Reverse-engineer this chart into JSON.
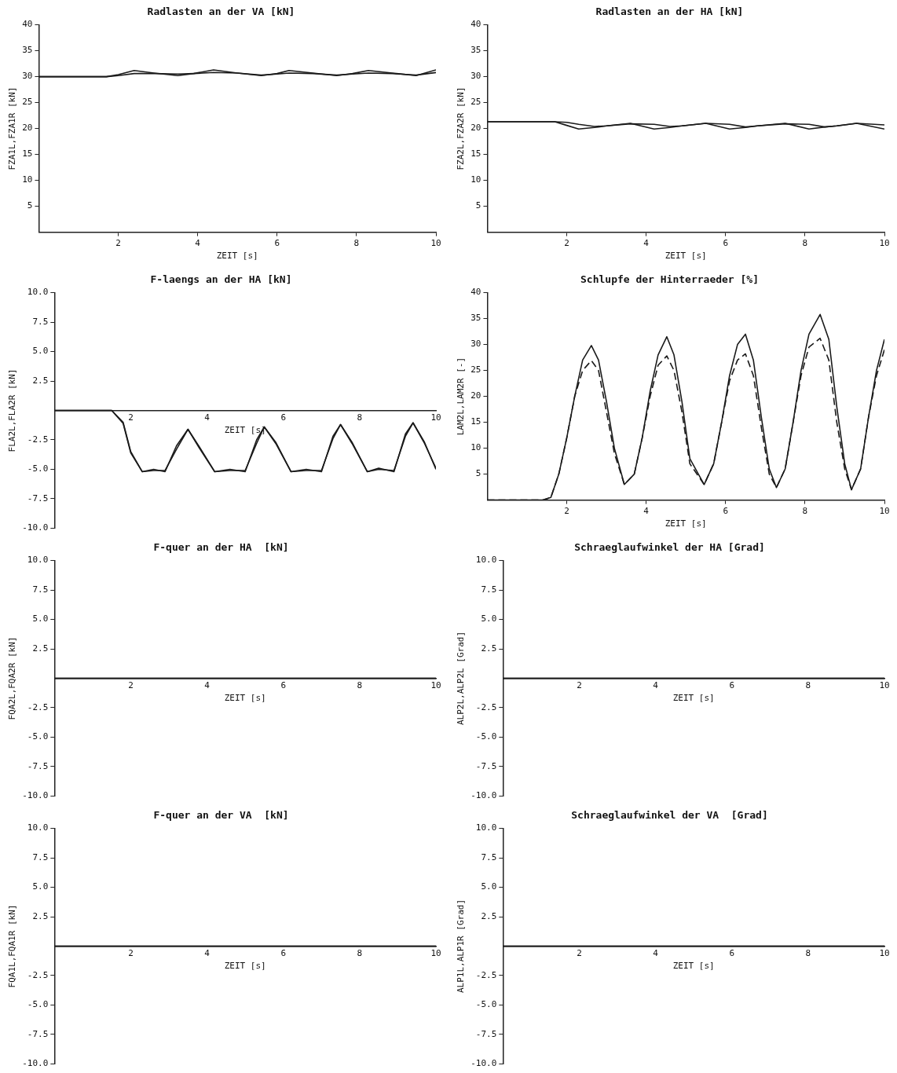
{
  "chart_data": [
    {
      "type": "line",
      "title": "Radlasten an der VA [kN]",
      "xlabel": "ZEIT [s]",
      "ylabel": "FZA1L,FZA1R [kN]",
      "xlim": [
        0,
        10
      ],
      "xticks": [
        2,
        4,
        6,
        8,
        10
      ],
      "ylim": [
        0,
        40
      ],
      "yticks": [
        5,
        10,
        15,
        20,
        25,
        30,
        35,
        40
      ],
      "grid": false,
      "legend": false,
      "marker": "none",
      "line_style": "solid",
      "x": [
        0,
        1.7,
        2.0,
        2.4,
        2.9,
        3.5,
        3.9,
        4.4,
        5.0,
        5.6,
        6.0,
        6.3,
        6.9,
        7.5,
        7.9,
        8.3,
        8.9,
        9.5,
        10
      ],
      "series": [
        {
          "color": "#1a1a1a",
          "values": [
            30,
            30,
            30.4,
            31.2,
            30.7,
            30.2,
            30.6,
            31.3,
            30.7,
            30.2,
            30.6,
            31.2,
            30.7,
            30.2,
            30.6,
            31.2,
            30.7,
            30.2,
            31.3
          ]
        },
        {
          "color": "#1a1a1a",
          "values": [
            30,
            30,
            30.2,
            30.6,
            30.6,
            30.5,
            30.6,
            30.8,
            30.7,
            30.3,
            30.5,
            30.7,
            30.6,
            30.3,
            30.5,
            30.7,
            30.6,
            30.3,
            30.8
          ]
        }
      ]
    },
    {
      "type": "line",
      "title": "Radlasten an der HA [kN]",
      "xlabel": "ZEIT [s]",
      "ylabel": "FZA2L,FZA2R [kN]",
      "xlim": [
        0,
        10
      ],
      "xticks": [
        2,
        4,
        6,
        8,
        10
      ],
      "ylim": [
        0,
        40
      ],
      "yticks": [
        5,
        10,
        15,
        20,
        25,
        30,
        35,
        40
      ],
      "grid": false,
      "legend": false,
      "marker": "none",
      "line_style": "solid",
      "x": [
        0,
        1.7,
        2.0,
        2.3,
        2.7,
        3.0,
        3.6,
        4.2,
        4.6,
        4.9,
        5.5,
        6.1,
        6.5,
        6.8,
        7.5,
        8.1,
        8.5,
        8.8,
        9.3,
        10
      ],
      "series": [
        {
          "color": "#1a1a1a",
          "values": [
            21.3,
            21.3,
            20.6,
            19.9,
            20.2,
            20.5,
            21,
            19.9,
            20.2,
            20.5,
            21,
            19.9,
            20.2,
            20.5,
            21,
            19.9,
            20.3,
            20.5,
            21,
            19.9
          ]
        },
        {
          "color": "#1a1a1a",
          "values": [
            21.3,
            21.3,
            21.2,
            20.8,
            20.4,
            20.5,
            20.9,
            20.8,
            20.4,
            20.5,
            21,
            20.8,
            20.3,
            20.5,
            20.9,
            20.8,
            20.3,
            20.5,
            21,
            20.7
          ]
        }
      ]
    },
    {
      "type": "line",
      "title": "F-laengs an der HA [kN]",
      "xlabel": "ZEIT [s]",
      "ylabel": "FLA2L,FLA2R [kN]",
      "xlim": [
        0,
        10
      ],
      "xticks": [
        2,
        4,
        6,
        8,
        10
      ],
      "ylim": [
        -10,
        10
      ],
      "yticks": [
        {
          "value": -10,
          "label": "-10.0"
        },
        {
          "value": -7.5,
          "label": "-7.5"
        },
        {
          "value": -5,
          "label": "-5.0"
        },
        {
          "value": -2.5,
          "label": "-2.5"
        },
        {
          "value": 2.5,
          "label": "2.5"
        },
        {
          "value": 5,
          "label": "5.0"
        },
        {
          "value": 7.5,
          "label": "7.5"
        },
        {
          "value": 10,
          "label": "10.0"
        }
      ],
      "grid": false,
      "legend": false,
      "marker": "none",
      "line_style": "solid",
      "x": [
        0,
        1.5,
        1.8,
        2.0,
        2.3,
        2.6,
        2.9,
        3.2,
        3.5,
        3.8,
        4.2,
        4.6,
        5.0,
        5.3,
        5.5,
        5.8,
        6.2,
        6.6,
        7.0,
        7.3,
        7.5,
        7.8,
        8.2,
        8.5,
        8.9,
        9.2,
        9.4,
        9.7,
        10
      ],
      "series": [
        {
          "color": "#1a1a1a",
          "values": [
            0,
            0,
            -1,
            -3.5,
            -5.2,
            -5,
            -5.2,
            -3,
            -1.6,
            -3.2,
            -5.2,
            -5,
            -5.2,
            -2.5,
            -1.4,
            -2.8,
            -5.2,
            -5,
            -5.2,
            -2.2,
            -1.2,
            -2.8,
            -5.2,
            -4.9,
            -5.2,
            -2,
            -1.05,
            -2.8,
            -4.9
          ]
        },
        {
          "color": "#1a1a1a",
          "values": [
            0,
            0,
            -1.1,
            -3.6,
            -5.2,
            -5.1,
            -5.1,
            -3.3,
            -1.6,
            -3.1,
            -5.2,
            -5.1,
            -5.1,
            -2.8,
            -1.4,
            -2.7,
            -5.2,
            -5.1,
            -5.1,
            -2.4,
            -1.2,
            -2.7,
            -5.2,
            -5.0,
            -5.1,
            -2.2,
            -1.05,
            -2.7,
            -5.0
          ]
        }
      ]
    },
    {
      "type": "line",
      "title": "Schlupfe der Hinterraeder [%]",
      "xlabel": "ZEIT [s]",
      "ylabel": "LAM2L,LAM2R [-]",
      "xlim": [
        0,
        10
      ],
      "xticks": [
        2,
        4,
        6,
        8,
        10
      ],
      "ylim": [
        0,
        40
      ],
      "yticks": [
        5,
        10,
        15,
        20,
        25,
        30,
        35,
        40
      ],
      "grid": false,
      "legend": false,
      "marker": "none",
      "x": [
        0,
        1.4,
        1.6,
        1.8,
        2.0,
        2.2,
        2.4,
        2.62,
        2.8,
        3.0,
        3.2,
        3.45,
        3.7,
        3.9,
        4.1,
        4.3,
        4.52,
        4.7,
        4.9,
        5.1,
        5.46,
        5.7,
        5.9,
        6.1,
        6.3,
        6.5,
        6.7,
        6.9,
        7.1,
        7.28,
        7.5,
        7.7,
        7.9,
        8.1,
        8.38,
        8.6,
        8.8,
        9.0,
        9.17,
        9.4,
        9.6,
        9.8,
        10
      ],
      "series": [
        {
          "color": "#1a1a1a",
          "line_style": "solid",
          "values": [
            0,
            0,
            0.5,
            5,
            12,
            20,
            27,
            29.8,
            27,
            19,
            10,
            3,
            5,
            12,
            21,
            28,
            31.5,
            28,
            19,
            8,
            3,
            7,
            15,
            24,
            30,
            32,
            27,
            16,
            6,
            2.4,
            6,
            15,
            25,
            32,
            35.8,
            31,
            18,
            7,
            2,
            6,
            16,
            25,
            31
          ]
        },
        {
          "color": "#1a1a1a",
          "line_style": "dashed",
          "values": [
            0,
            0,
            0.5,
            5,
            12,
            20,
            25,
            26.9,
            25,
            17,
            9,
            3,
            5,
            12,
            20,
            26,
            27.8,
            25,
            17,
            7,
            3,
            7,
            15,
            23,
            27,
            28.2,
            24,
            14,
            5,
            2.4,
            6,
            15,
            24,
            29.5,
            31.2,
            27,
            15,
            6,
            2,
            6,
            16,
            24,
            29
          ]
        }
      ]
    },
    {
      "type": "line",
      "title": "F-quer an der HA  [kN]",
      "xlabel": "ZEIT [s]",
      "ylabel": "FQA2L,FQA2R [kN]",
      "xlim": [
        0,
        10
      ],
      "xticks": [
        2,
        4,
        6,
        8,
        10
      ],
      "ylim": [
        -10,
        10
      ],
      "yticks": [
        {
          "value": -10,
          "label": "-10.0"
        },
        {
          "value": -7.5,
          "label": "-7.5"
        },
        {
          "value": -5,
          "label": "-5.0"
        },
        {
          "value": -2.5,
          "label": "-2.5"
        },
        {
          "value": 2.5,
          "label": "2.5"
        },
        {
          "value": 5,
          "label": "5.0"
        },
        {
          "value": 7.5,
          "label": "7.5"
        },
        {
          "value": 10,
          "label": "10.0"
        }
      ],
      "grid": false,
      "legend": false,
      "marker": "none",
      "line_style": "solid",
      "x": [
        0,
        10
      ],
      "series": [
        {
          "color": "#1a1a1a",
          "values": [
            0,
            0
          ]
        },
        {
          "color": "#1a1a1a",
          "values": [
            0,
            0
          ]
        }
      ]
    },
    {
      "type": "line",
      "title": "Schraeglaufwinkel der HA [Grad]",
      "xlabel": "ZEIT [s]",
      "ylabel": "ALP2L,ALP2L [Grad]",
      "xlim": [
        0,
        10
      ],
      "xticks": [
        2,
        4,
        6,
        8,
        10
      ],
      "ylim": [
        -10,
        10
      ],
      "yticks": [
        {
          "value": -10,
          "label": "-10.0"
        },
        {
          "value": -7.5,
          "label": "-7.5"
        },
        {
          "value": -5,
          "label": "-5.0"
        },
        {
          "value": -2.5,
          "label": "-2.5"
        },
        {
          "value": 2.5,
          "label": "2.5"
        },
        {
          "value": 5,
          "label": "5.0"
        },
        {
          "value": 7.5,
          "label": "7.5"
        },
        {
          "value": 10,
          "label": "10.0"
        }
      ],
      "grid": false,
      "legend": false,
      "marker": "none",
      "line_style": "solid",
      "x": [
        0,
        10
      ],
      "series": [
        {
          "color": "#1a1a1a",
          "values": [
            0,
            0
          ]
        },
        {
          "color": "#1a1a1a",
          "values": [
            0,
            0
          ]
        }
      ]
    },
    {
      "type": "line",
      "title": "F-quer an der VA  [kN]",
      "xlabel": "ZEIT [s]",
      "ylabel": "FQA1L,FQA1R [kN]",
      "xlim": [
        0,
        10
      ],
      "xticks": [
        2,
        4,
        6,
        8,
        10
      ],
      "ylim": [
        -10,
        10
      ],
      "yticks": [
        {
          "value": -10,
          "label": "-10.0"
        },
        {
          "value": -7.5,
          "label": "-7.5"
        },
        {
          "value": -5,
          "label": "-5.0"
        },
        {
          "value": -2.5,
          "label": "-2.5"
        },
        {
          "value": 2.5,
          "label": "2.5"
        },
        {
          "value": 5,
          "label": "5.0"
        },
        {
          "value": 7.5,
          "label": "7.5"
        },
        {
          "value": 10,
          "label": "10.0"
        }
      ],
      "grid": false,
      "legend": false,
      "marker": "none",
      "line_style": "solid",
      "x": [
        0,
        10
      ],
      "series": [
        {
          "color": "#1a1a1a",
          "values": [
            0,
            0
          ]
        },
        {
          "color": "#1a1a1a",
          "values": [
            0,
            0
          ]
        }
      ]
    },
    {
      "type": "line",
      "title": "Schraeglaufwinkel der VA  [Grad]",
      "xlabel": "ZEIT [s]",
      "ylabel": "ALP1L,ALP1R [Grad]",
      "xlim": [
        0,
        10
      ],
      "xticks": [
        2,
        4,
        6,
        8,
        10
      ],
      "ylim": [
        -10,
        10
      ],
      "yticks": [
        {
          "value": -10,
          "label": "-10.0"
        },
        {
          "value": -7.5,
          "label": "-7.5"
        },
        {
          "value": -5,
          "label": "-5.0"
        },
        {
          "value": -2.5,
          "label": "-2.5"
        },
        {
          "value": 2.5,
          "label": "2.5"
        },
        {
          "value": 5,
          "label": "5.0"
        },
        {
          "value": 7.5,
          "label": "7.5"
        },
        {
          "value": 10,
          "label": "10.0"
        }
      ],
      "grid": false,
      "legend": false,
      "marker": "none",
      "line_style": "solid",
      "x": [
        0,
        10
      ],
      "series": [
        {
          "color": "#1a1a1a",
          "values": [
            0,
            0
          ]
        },
        {
          "color": "#1a1a1a",
          "values": [
            0,
            0
          ]
        }
      ]
    }
  ]
}
